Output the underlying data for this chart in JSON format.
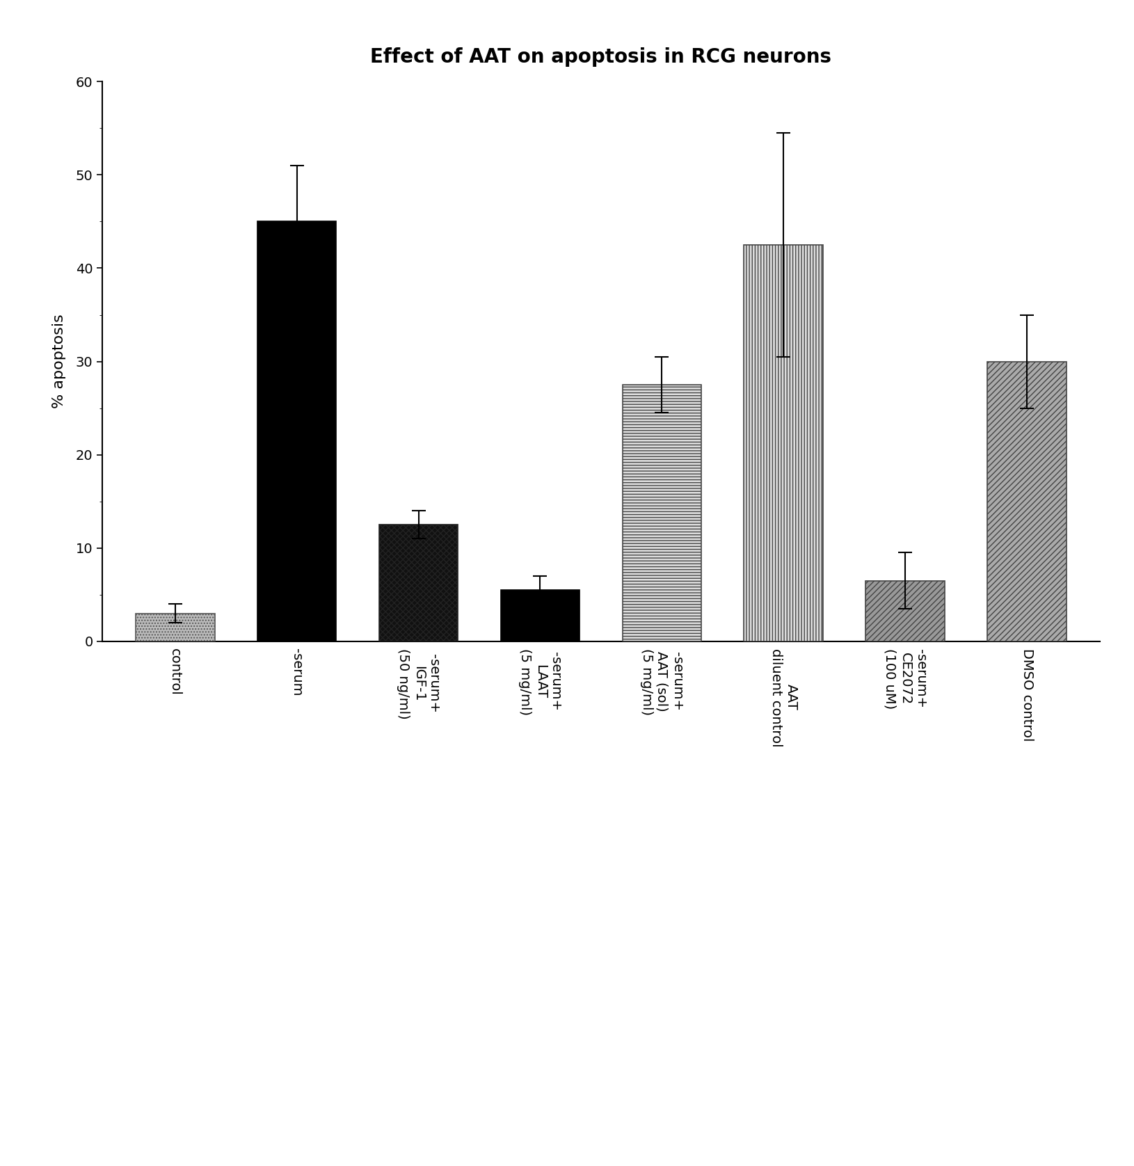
{
  "title": "Effect of AAT on apoptosis in RCG neurons",
  "ylabel": "% apoptosis",
  "ylim": [
    0,
    60
  ],
  "yticks": [
    0,
    10,
    20,
    30,
    40,
    50,
    60
  ],
  "categories": [
    "control",
    "-serum",
    "-serum+\nIGF-1\n(50 ng/ml)",
    "-serum+\nLAAT\n(5 mg/ml)",
    "-serum+\nAAT (sol)\n(5 mg/ml)",
    "AAT\ndiluent control",
    "-serum+\nCE2072\n(100 uM)",
    "DMSO control"
  ],
  "values": [
    3.0,
    45.0,
    12.5,
    5.5,
    27.5,
    42.5,
    6.5,
    30.0
  ],
  "errors": [
    1.0,
    6.0,
    1.5,
    1.5,
    3.0,
    12.0,
    3.0,
    5.0
  ],
  "bar_colors": [
    "#bbbbbb",
    "#000000",
    "#111111",
    "#000000",
    "#dddddd",
    "#dddddd",
    "#999999",
    "#aaaaaa"
  ],
  "hatch_patterns": [
    "....",
    "",
    "xxxx",
    "",
    "----",
    "||||",
    "////",
    "////"
  ],
  "edgecolors": [
    "#555555",
    "#000000",
    "#222222",
    "#000000",
    "#444444",
    "#444444",
    "#444444",
    "#444444"
  ],
  "title_fontsize": 20,
  "label_fontsize": 14,
  "tick_fontsize": 14,
  "background_color": "#ffffff"
}
